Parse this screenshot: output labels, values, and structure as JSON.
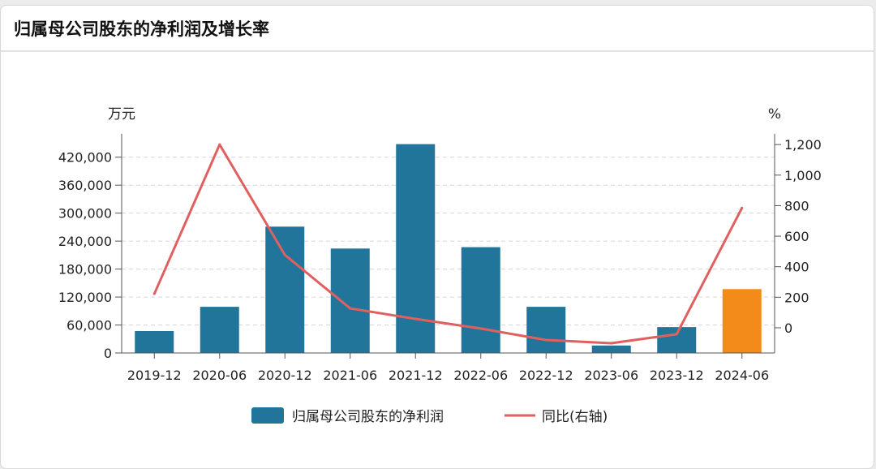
{
  "header": {
    "title": "归属母公司股东的净利润及增长率"
  },
  "chart_data": {
    "type": "bar+line",
    "categories": [
      "2019-12",
      "2020-06",
      "2020-12",
      "2021-06",
      "2021-12",
      "2022-06",
      "2022-12",
      "2023-06",
      "2023-12",
      "2024-06"
    ],
    "series": [
      {
        "name": "归属母公司股东的净利润",
        "type": "bar",
        "axis": "left",
        "color": "#21759b",
        "highlight_color": "#f38b1a",
        "highlight_index": 9,
        "values": [
          47000,
          99000,
          271000,
          224000,
          448000,
          227000,
          99000,
          16000,
          55500,
          137000
        ]
      },
      {
        "name": "同比(右轴)",
        "type": "line",
        "axis": "right",
        "color": "#e06060",
        "values": [
          222,
          1200,
          477,
          127,
          58,
          -5,
          -80,
          -101,
          -42,
          785
        ]
      }
    ],
    "y_left": {
      "label": "万元",
      "range": [
        0,
        470000
      ],
      "ticks": [
        0,
        60000,
        120000,
        180000,
        240000,
        300000,
        360000,
        420000
      ],
      "tick_labels": [
        "0",
        "60,000",
        "120,000",
        "180,000",
        "240,000",
        "300,000",
        "360,000",
        "420,000"
      ]
    },
    "y_right": {
      "label": "%",
      "range": [
        -165,
        1270
      ],
      "ticks": [
        0,
        200,
        400,
        600,
        800,
        1000,
        1200
      ],
      "tick_labels": [
        "0",
        "200",
        "400",
        "600",
        "800",
        "1,000",
        "1,200"
      ]
    },
    "grid": true,
    "legend_placement": "bottom"
  }
}
